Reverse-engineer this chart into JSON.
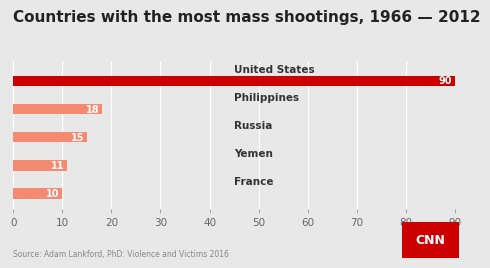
{
  "title": "Countries with the most mass shootings, 1966 — 2012",
  "categories": [
    "United States",
    "Philippines",
    "Russia",
    "Yemen",
    "France"
  ],
  "values": [
    90,
    18,
    15,
    11,
    10
  ],
  "bar_colors": [
    "#cc0000",
    "#f48a72",
    "#f48a72",
    "#f48a72",
    "#f48a72"
  ],
  "xlim": [
    0,
    90
  ],
  "xticks": [
    0,
    10,
    20,
    30,
    40,
    50,
    60,
    70,
    80,
    90
  ],
  "background_color": "#e8e8e8",
  "title_fontsize": 11,
  "tick_fontsize": 7.5,
  "source_text": "Source: Adam Lankford, PhD: Violence and Victims 2016",
  "bar_height": 0.38
}
